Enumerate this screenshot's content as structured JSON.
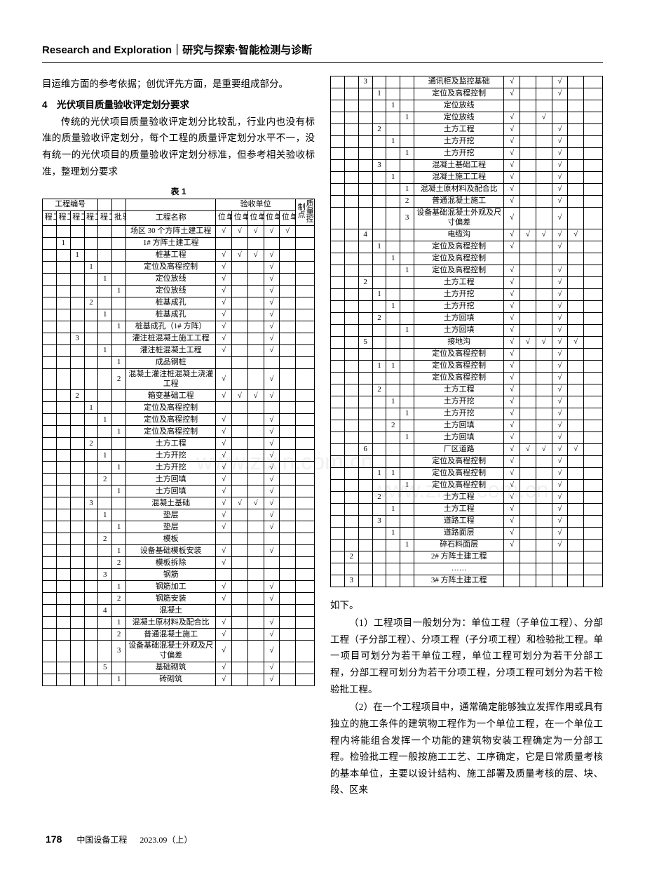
{
  "header": {
    "en": "Research and Exploration",
    "sep": "｜",
    "cn": "研究与探索·智能检测与诊断"
  },
  "leftTop": {
    "p1": "目运维方面的参考依据；创优评先方面，是重要组成部分。",
    "section": "4　光伏项目质量验收评定划分要求",
    "p2": "传统的光伏项目质量验收评定划分比较乱，行业内也没有标准的质量验收评定划分，每个工程的质量评定划分水平不一，没有统一的光伏项目的质量验收评定划分标准，但参考相关验收标准，整理划分要求",
    "tableTitle": "表 1"
  },
  "tableHeaders": {
    "group1": "工程编号",
    "group2": "验收单位",
    "unit": "单位工程",
    "subunit": "子单位工程",
    "div": "分部工程",
    "subdiv": "子分部工程",
    "item": "分项工程",
    "batch": "检验批",
    "name": "工程名称",
    "sg": "施工单位",
    "kc": "勘察单位",
    "sj": "设计单位",
    "jl": "监理单位",
    "js": "建设单位",
    "qc": "质量控制点"
  },
  "leftRows": [
    {
      "c": [
        "",
        "",
        "",
        "",
        "",
        "",
        "场区 30 个方阵土建工程",
        "√",
        "√",
        "√",
        "√",
        "√",
        ""
      ]
    },
    {
      "c": [
        "",
        "1",
        "",
        "",
        "",
        "",
        "1# 方阵土建工程",
        "",
        "",
        "",
        "",
        "",
        ""
      ]
    },
    {
      "c": [
        "",
        "",
        "1",
        "",
        "",
        "",
        "桩基工程",
        "√",
        "√",
        "√",
        "√",
        "",
        ""
      ]
    },
    {
      "c": [
        "",
        "",
        "",
        "1",
        "",
        "",
        "定位及高程控制",
        "√",
        "",
        "",
        "√",
        "",
        ""
      ]
    },
    {
      "c": [
        "",
        "",
        "",
        "",
        "1",
        "",
        "定位放线",
        "√",
        "",
        "",
        "√",
        "",
        ""
      ]
    },
    {
      "c": [
        "",
        "",
        "",
        "",
        "",
        "1",
        "定位放线",
        "√",
        "",
        "",
        "√",
        "",
        ""
      ]
    },
    {
      "c": [
        "",
        "",
        "",
        "2",
        "",
        "",
        "桩基成孔",
        "√",
        "",
        "",
        "√",
        "",
        ""
      ]
    },
    {
      "c": [
        "",
        "",
        "",
        "",
        "1",
        "",
        "桩基成孔",
        "√",
        "",
        "",
        "√",
        "",
        ""
      ]
    },
    {
      "c": [
        "",
        "",
        "",
        "",
        "",
        "1",
        "桩基成孔（1# 方阵）",
        "√",
        "",
        "",
        "√",
        "",
        ""
      ]
    },
    {
      "c": [
        "",
        "",
        "3",
        "",
        "",
        "",
        "灌注桩混凝土施工工程",
        "√",
        "",
        "",
        "√",
        "",
        ""
      ]
    },
    {
      "c": [
        "",
        "",
        "",
        "",
        "1",
        "",
        "灌注桩混凝土工程",
        "√",
        "",
        "",
        "√",
        "",
        ""
      ]
    },
    {
      "c": [
        "",
        "",
        "",
        "",
        "",
        "1",
        "成品钢桩",
        "",
        "",
        "",
        "",
        "",
        ""
      ]
    },
    {
      "c": [
        "",
        "",
        "",
        "",
        "",
        "2",
        "混凝土灌注桩混凝土浇灌工程",
        "√",
        "",
        "",
        "√",
        "",
        ""
      ]
    },
    {
      "c": [
        "",
        "",
        "2",
        "",
        "",
        "",
        "箱变基础工程",
        "√",
        "√",
        "√",
        "√",
        "",
        ""
      ]
    },
    {
      "c": [
        "",
        "",
        "",
        "1",
        "",
        "",
        "定位及高程控制",
        "",
        "",
        "",
        "",
        "",
        ""
      ]
    },
    {
      "c": [
        "",
        "",
        "",
        "",
        "1",
        "",
        "定位及高程控制",
        "√",
        "",
        "",
        "√",
        "",
        ""
      ]
    },
    {
      "c": [
        "",
        "",
        "",
        "",
        "",
        "1",
        "定位及高程控制",
        "√",
        "",
        "",
        "√",
        "",
        ""
      ]
    },
    {
      "c": [
        "",
        "",
        "",
        "2",
        "",
        "",
        "土方工程",
        "√",
        "",
        "",
        "√",
        "",
        ""
      ]
    },
    {
      "c": [
        "",
        "",
        "",
        "",
        "1",
        "",
        "土方开挖",
        "√",
        "",
        "",
        "√",
        "",
        ""
      ]
    },
    {
      "c": [
        "",
        "",
        "",
        "",
        "",
        "1",
        "土方开挖",
        "√",
        "",
        "",
        "√",
        "",
        ""
      ]
    },
    {
      "c": [
        "",
        "",
        "",
        "",
        "2",
        "",
        "土方回填",
        "√",
        "",
        "",
        "√",
        "",
        ""
      ]
    },
    {
      "c": [
        "",
        "",
        "",
        "",
        "",
        "1",
        "土方回填",
        "√",
        "",
        "",
        "√",
        "",
        ""
      ]
    },
    {
      "c": [
        "",
        "",
        "",
        "3",
        "",
        "",
        "混凝土基础",
        "√",
        "√",
        "√",
        "√",
        "",
        ""
      ]
    },
    {
      "c": [
        "",
        "",
        "",
        "",
        "1",
        "",
        "垫层",
        "√",
        "",
        "",
        "√",
        "",
        ""
      ]
    },
    {
      "c": [
        "",
        "",
        "",
        "",
        "",
        "1",
        "垫层",
        "√",
        "",
        "",
        "√",
        "",
        ""
      ]
    },
    {
      "c": [
        "",
        "",
        "",
        "",
        "2",
        "",
        "模板",
        "",
        "",
        "",
        "",
        "",
        ""
      ]
    },
    {
      "c": [
        "",
        "",
        "",
        "",
        "",
        "1",
        "设备基础模板安装",
        "√",
        "",
        "",
        "√",
        "",
        ""
      ]
    },
    {
      "c": [
        "",
        "",
        "",
        "",
        "",
        "2",
        "模板拆除",
        "√",
        "",
        "",
        "",
        "",
        ""
      ]
    },
    {
      "c": [
        "",
        "",
        "",
        "",
        "3",
        "",
        "钢筋",
        "",
        "",
        "",
        "",
        "",
        ""
      ]
    },
    {
      "c": [
        "",
        "",
        "",
        "",
        "",
        "1",
        "钢筋加工",
        "√",
        "",
        "",
        "√",
        "",
        ""
      ]
    },
    {
      "c": [
        "",
        "",
        "",
        "",
        "",
        "2",
        "钢筋安装",
        "√",
        "",
        "",
        "√",
        "",
        ""
      ]
    },
    {
      "c": [
        "",
        "",
        "",
        "",
        "4",
        "",
        "混凝土",
        "",
        "",
        "",
        "",
        "",
        ""
      ]
    },
    {
      "c": [
        "",
        "",
        "",
        "",
        "",
        "1",
        "混凝土原材料及配合比",
        "√",
        "",
        "",
        "√",
        "",
        ""
      ]
    },
    {
      "c": [
        "",
        "",
        "",
        "",
        "",
        "2",
        "普通混凝土施工",
        "√",
        "",
        "",
        "√",
        "",
        ""
      ]
    },
    {
      "c": [
        "",
        "",
        "",
        "",
        "",
        "3",
        "设备基础混凝土外观及尺寸偏差",
        "√",
        "",
        "",
        "√",
        "",
        ""
      ]
    },
    {
      "c": [
        "",
        "",
        "",
        "",
        "5",
        "",
        "基础砌筑",
        "√",
        "",
        "",
        "√",
        "",
        ""
      ]
    },
    {
      "c": [
        "",
        "",
        "",
        "",
        "",
        "1",
        "砖砌筑",
        "√",
        "",
        "",
        "√",
        "",
        ""
      ]
    }
  ],
  "rightRows": [
    {
      "c": [
        "",
        "",
        "3",
        "",
        "",
        "",
        "通讯柜及监控基础",
        "√",
        "",
        "",
        "√",
        "",
        ""
      ]
    },
    {
      "c": [
        "",
        "",
        "",
        "1",
        "",
        "",
        "定位及高程控制",
        "√",
        "",
        "",
        "√",
        "",
        ""
      ]
    },
    {
      "c": [
        "",
        "",
        "",
        "",
        "1",
        "",
        "定位放线",
        "",
        "",
        "",
        "",
        "",
        ""
      ]
    },
    {
      "c": [
        "",
        "",
        "",
        "",
        "",
        "1",
        "定位放线",
        "√",
        "",
        "√",
        "",
        "",
        ""
      ]
    },
    {
      "c": [
        "",
        "",
        "",
        "2",
        "",
        "",
        "土方工程",
        "√",
        "",
        "",
        "√",
        "",
        ""
      ]
    },
    {
      "c": [
        "",
        "",
        "",
        "",
        "1",
        "",
        "土方开挖",
        "√",
        "",
        "",
        "√",
        "",
        ""
      ]
    },
    {
      "c": [
        "",
        "",
        "",
        "",
        "",
        "1",
        "土方开挖",
        "√",
        "",
        "",
        "√",
        "",
        ""
      ]
    },
    {
      "c": [
        "",
        "",
        "",
        "3",
        "",
        "",
        "混凝土基础工程",
        "√",
        "",
        "",
        "√",
        "",
        ""
      ]
    },
    {
      "c": [
        "",
        "",
        "",
        "",
        "1",
        "",
        "混凝土施工工程",
        "√",
        "",
        "",
        "√",
        "",
        ""
      ]
    },
    {
      "c": [
        "",
        "",
        "",
        "",
        "",
        "1",
        "混凝土原材料及配合比",
        "√",
        "",
        "",
        "√",
        "",
        ""
      ]
    },
    {
      "c": [
        "",
        "",
        "",
        "",
        "",
        "2",
        "普通混凝土施工",
        "√",
        "",
        "",
        "√",
        "",
        ""
      ]
    },
    {
      "c": [
        "",
        "",
        "",
        "",
        "",
        "3",
        "设备基础混凝土外观及尺寸偏差",
        "√",
        "",
        "",
        "√",
        "",
        ""
      ]
    },
    {
      "c": [
        "",
        "",
        "4",
        "",
        "",
        "",
        "电缆沟",
        "√",
        "√",
        "√",
        "√",
        "√",
        ""
      ]
    },
    {
      "c": [
        "",
        "",
        "",
        "1",
        "",
        "",
        "定位及高程控制",
        "√",
        "",
        "",
        "√",
        "",
        ""
      ]
    },
    {
      "c": [
        "",
        "",
        "",
        "",
        "1",
        "",
        "定位及高程控制",
        "",
        "",
        "",
        "",
        "",
        ""
      ]
    },
    {
      "c": [
        "",
        "",
        "",
        "",
        "",
        "1",
        "定位及高程控制",
        "√",
        "",
        "",
        "√",
        "",
        ""
      ]
    },
    {
      "c": [
        "",
        "",
        "2",
        "",
        "",
        "",
        "土方工程",
        "√",
        "",
        "",
        "√",
        "",
        ""
      ]
    },
    {
      "c": [
        "",
        "",
        "",
        "1",
        "",
        "",
        "土方开挖",
        "√",
        "",
        "",
        "√",
        "",
        ""
      ]
    },
    {
      "c": [
        "",
        "",
        "",
        "",
        "1",
        "",
        "土方开挖",
        "√",
        "",
        "",
        "√",
        "",
        ""
      ]
    },
    {
      "c": [
        "",
        "",
        "",
        "2",
        "",
        "",
        "土方回填",
        "√",
        "",
        "",
        "√",
        "",
        ""
      ]
    },
    {
      "c": [
        "",
        "",
        "",
        "",
        "",
        "1",
        "土方回填",
        "√",
        "",
        "",
        "√",
        "",
        ""
      ]
    },
    {
      "c": [
        "",
        "",
        "5",
        "",
        "",
        "",
        "接地沟",
        "√",
        "√",
        "√",
        "√",
        "√",
        ""
      ]
    },
    {
      "c": [
        "",
        "",
        "",
        "",
        "",
        "",
        "定位及高程控制",
        "√",
        "",
        "",
        "√",
        "",
        ""
      ]
    },
    {
      "c": [
        "",
        "",
        "",
        "1",
        "1",
        "",
        "定位及高程控制",
        "√",
        "",
        "",
        "√",
        "",
        ""
      ]
    },
    {
      "c": [
        "",
        "",
        "",
        "",
        "",
        "",
        "定位及高程控制",
        "√",
        "",
        "",
        "√",
        "",
        ""
      ]
    },
    {
      "c": [
        "",
        "",
        "",
        "2",
        "",
        "",
        "土方工程",
        "√",
        "",
        "",
        "√",
        "",
        ""
      ]
    },
    {
      "c": [
        "",
        "",
        "",
        "",
        "1",
        "",
        "土方开挖",
        "√",
        "",
        "",
        "√",
        "",
        ""
      ]
    },
    {
      "c": [
        "",
        "",
        "",
        "",
        "",
        "1",
        "土方开挖",
        "√",
        "",
        "",
        "√",
        "",
        ""
      ]
    },
    {
      "c": [
        "",
        "",
        "",
        "",
        "2",
        "",
        "土方回填",
        "√",
        "",
        "",
        "√",
        "",
        ""
      ]
    },
    {
      "c": [
        "",
        "",
        "",
        "",
        "",
        "1",
        "土方回填",
        "√",
        "",
        "",
        "√",
        "",
        ""
      ]
    },
    {
      "c": [
        "",
        "",
        "6",
        "",
        "",
        "",
        "厂区道路",
        "√",
        "√",
        "√",
        "√",
        "√",
        ""
      ]
    },
    {
      "c": [
        "",
        "",
        "",
        "",
        "",
        "",
        "定位及高程控制",
        "√",
        "",
        "",
        "√",
        "",
        ""
      ]
    },
    {
      "c": [
        "",
        "",
        "",
        "1",
        "1",
        "",
        "定位及高程控制",
        "√",
        "",
        "",
        "√",
        "",
        ""
      ]
    },
    {
      "c": [
        "",
        "",
        "",
        "",
        "",
        "1",
        "定位及高程控制",
        "√",
        "",
        "",
        "√",
        "",
        ""
      ]
    },
    {
      "c": [
        "",
        "",
        "",
        "2",
        "",
        "",
        "土方工程",
        "√",
        "",
        "",
        "√",
        "",
        ""
      ]
    },
    {
      "c": [
        "",
        "",
        "",
        "",
        "1",
        "",
        "土方工程",
        "√",
        "",
        "",
        "√",
        "",
        ""
      ]
    },
    {
      "c": [
        "",
        "",
        "",
        "3",
        "",
        "",
        "道路工程",
        "√",
        "",
        "",
        "√",
        "",
        ""
      ]
    },
    {
      "c": [
        "",
        "",
        "",
        "",
        "1",
        "",
        "道路面层",
        "√",
        "",
        "",
        "√",
        "",
        ""
      ]
    },
    {
      "c": [
        "",
        "",
        "",
        "",
        "",
        "1",
        "碎石料面层",
        "√",
        "",
        "",
        "√",
        "",
        ""
      ]
    },
    {
      "c": [
        "",
        "2",
        "",
        "",
        "",
        "",
        "2# 方阵土建工程",
        "",
        "",
        "",
        "",
        "",
        ""
      ]
    },
    {
      "c": [
        "",
        "",
        "",
        "",
        "",
        "",
        "……",
        "",
        "",
        "",
        "",
        "",
        ""
      ]
    },
    {
      "c": [
        "",
        "3",
        "",
        "",
        "",
        "",
        "3# 方阵土建工程",
        "",
        "",
        "",
        "",
        "",
        ""
      ]
    }
  ],
  "rightText": {
    "p1": "如下。",
    "p2": "（1）工程项目一般划分为：单位工程（子单位工程）、分部工程（子分部工程）、分项工程（子分项工程）和检验批工程。单一项目可划分为若干单位工程，单位工程可划分为若干分部工程，分部工程可划分为若干分项工程，分项工程可划分为若干检验批工程。",
    "p3": "（2）在一个工程项目中，通常确定能够独立发挥作用或具有独立的施工条件的建筑物工程作为一个单位工程，在一个单位工程内将能组合发挥一个功能的建筑物安装工程确定为一分部工程。检验批工程一般按施工工艺、工序确定，它是日常质量考核的基本单位，主要以设计结构、施工部署及质量考核的层、块、段、区来"
  },
  "footer": {
    "page": "178",
    "journal": "中国设备工程",
    "date": "2023.09（上）"
  },
  "watermark": "www.zixin.com.cn",
  "style": {
    "colWidths": {
      "num": "4.8%",
      "name": "31%",
      "check": "5.5%",
      "qc": "5.5%"
    }
  }
}
